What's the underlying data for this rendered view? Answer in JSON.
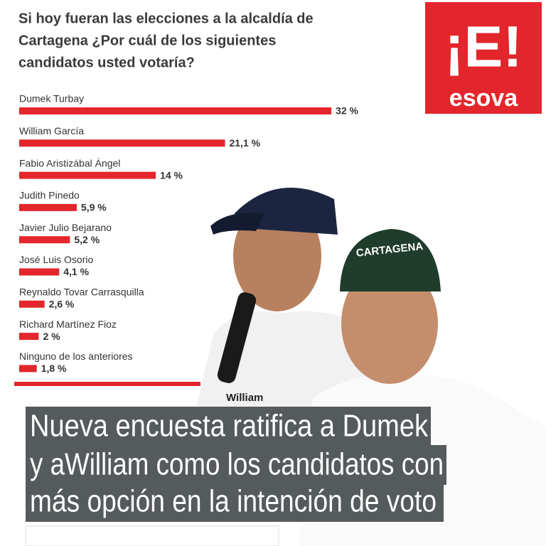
{
  "chart_data": {
    "type": "bar",
    "orientation": "horizontal",
    "title": [
      "Si hoy fueran las elecciones a la alcaldía de",
      "Cartagena ¿Por cuál de los siguientes",
      "candidatos usted votaría?"
    ],
    "categories": [
      "Dumek Turbay",
      "William García",
      "Fabio Aristizábal Ángel",
      "Judith Pinedo",
      "Javier Julio Bejarano",
      "José Luis Osorio",
      "Reynaldo Tovar Carrasquilla",
      "Richard Martínez Fioz",
      "Ninguno de los anteriores"
    ],
    "values": [
      32,
      21.1,
      14,
      5.9,
      5.2,
      4.1,
      2.6,
      2,
      1.8
    ],
    "value_labels": [
      "32 %",
      "21,1 %",
      "14 %",
      "5,9 %",
      "5,2 %",
      "4,1 %",
      "2,6 %",
      "2 %",
      "1,8 %"
    ],
    "color": "#e3262b"
  },
  "logo": {
    "mark": "¡E!",
    "name": "esova"
  },
  "photo_labels": {
    "cap": "CARTAGENA",
    "shirt": "William"
  },
  "headline": [
    "Nueva encuesta ratifica a  Dumek",
    "y aWilliam como los candidatos con",
    "más opción  en la intención de voto"
  ]
}
